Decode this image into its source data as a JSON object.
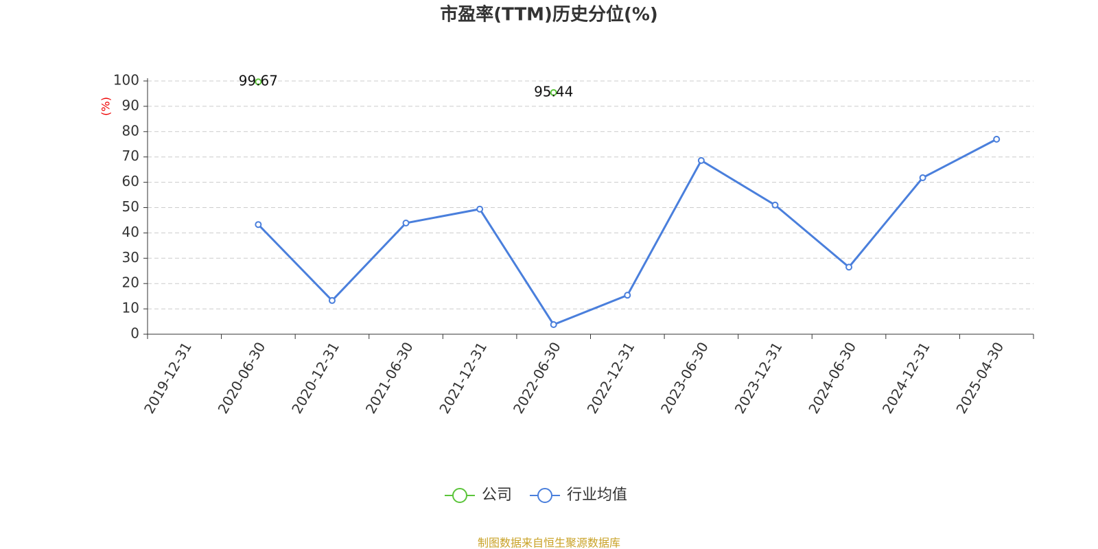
{
  "chart_data": {
    "type": "line",
    "title": "市盈率(TTM)历史分位(%)",
    "y_label": "(%)",
    "categories": [
      "2019-12-31",
      "2020-06-30",
      "2020-12-31",
      "2021-06-30",
      "2021-12-31",
      "2022-06-30",
      "2022-12-31",
      "2023-06-30",
      "2023-12-31",
      "2024-06-30",
      "2024-12-31",
      "2025-04-30"
    ],
    "series": [
      {
        "name": "公司",
        "color": "#5bc43a",
        "values": [
          null,
          99.67,
          null,
          null,
          null,
          95.44,
          null,
          null,
          null,
          null,
          null,
          null
        ],
        "show_labels": true
      },
      {
        "name": "行业均值",
        "color": "#4a7fdc",
        "values": [
          null,
          43.3,
          13.3,
          43.9,
          49.4,
          3.8,
          15.4,
          68.6,
          51.0,
          26.5,
          61.8,
          77.0
        ],
        "show_labels": false
      }
    ],
    "ylim": [
      0,
      100
    ],
    "yticks": [
      0,
      10,
      20,
      30,
      40,
      50,
      60,
      70,
      80,
      90,
      100
    ],
    "grid": true,
    "legend": "bottom",
    "source": "制图数据来自恒生聚源数据库"
  }
}
